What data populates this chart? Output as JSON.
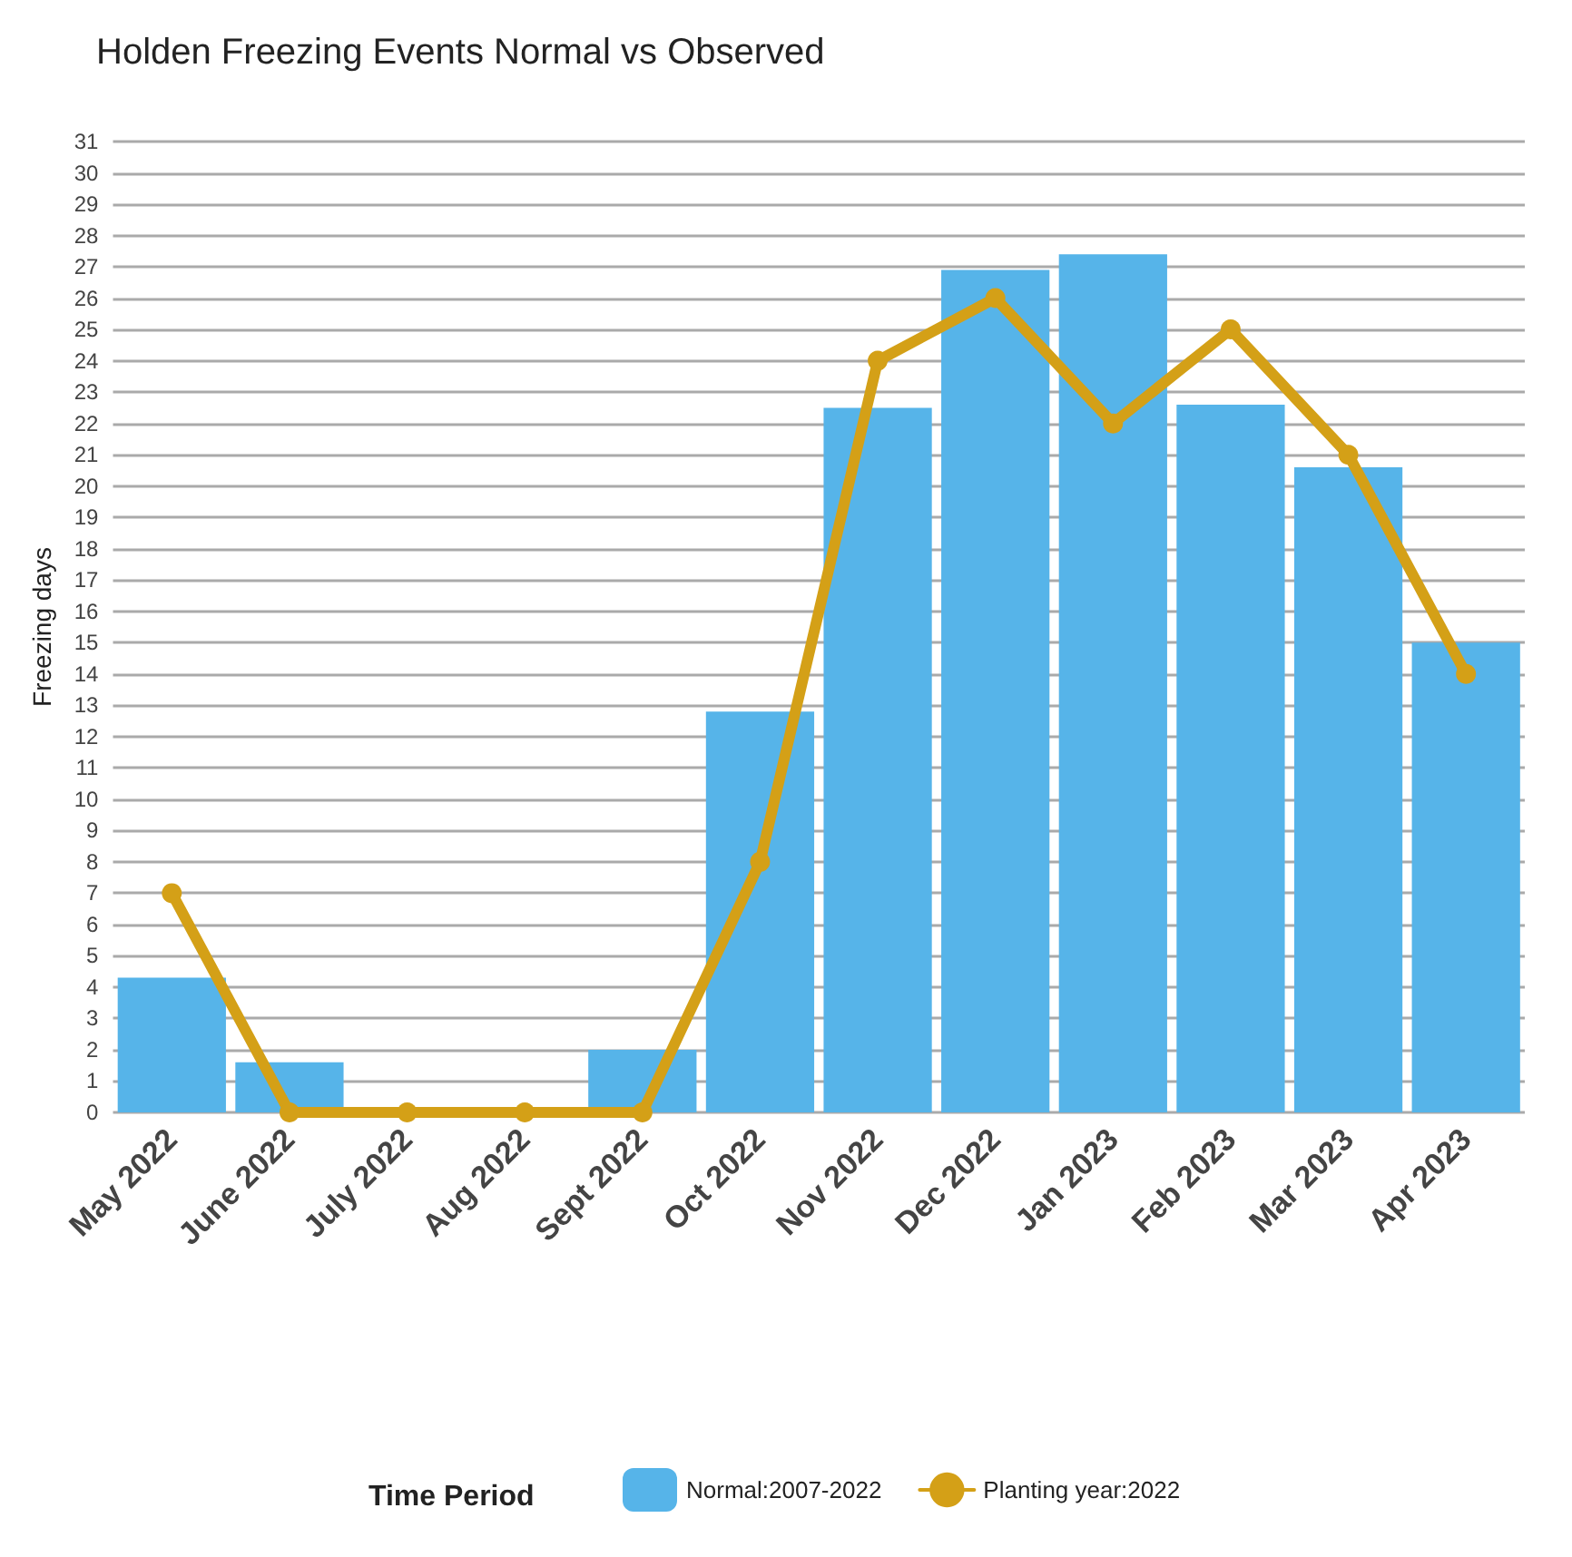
{
  "chart_data": {
    "type": "bar",
    "title": "Holden Freezing Events Normal vs Observed",
    "ylabel": "Freezing days",
    "legend_title": "Time Period",
    "categories": [
      "May 2022",
      "June 2022",
      "July 2022",
      "Aug 2022",
      "Sept 2022",
      "Oct 2022",
      "Nov 2022",
      "Dec 2022",
      "Jan 2023",
      "Feb 2023",
      "Mar 2023",
      "Apr 2023"
    ],
    "series": [
      {
        "name": "Normal:2007-2022",
        "color": "#56b4e9",
        "values": [
          4.3,
          1.6,
          0,
          0,
          2.0,
          12.8,
          22.5,
          26.9,
          27.4,
          22.6,
          20.6,
          15.0
        ]
      },
      {
        "name": "Planting year:2022",
        "type": "line",
        "color": "#d4a017",
        "marker": "circle",
        "values": [
          7,
          0,
          0,
          0,
          0,
          8,
          24,
          26,
          22,
          25,
          21,
          14
        ]
      }
    ],
    "ylim": [
      0,
      31
    ],
    "yticks": [
      0,
      1,
      2,
      3,
      4,
      5,
      6,
      7,
      8,
      9,
      10,
      11,
      12,
      13,
      14,
      15,
      16,
      17,
      18,
      19,
      20,
      21,
      22,
      23,
      24,
      25,
      26,
      27,
      28,
      29,
      30,
      31
    ],
    "grid": "y",
    "legend": "bottom"
  }
}
